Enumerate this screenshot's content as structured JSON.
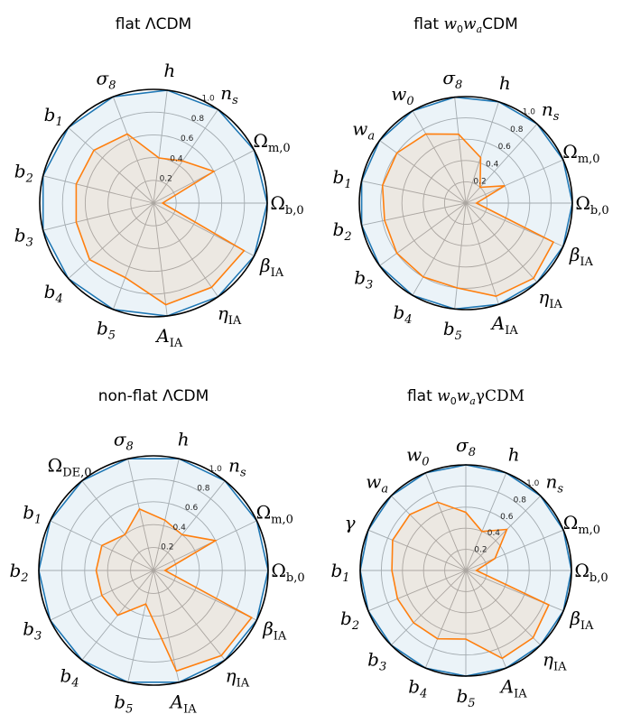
{
  "colors": {
    "outer": "#1f77b4",
    "inner": "#ff7f0e",
    "grid": "#b0b0b0"
  },
  "radial_ticks": [
    "0.2",
    "0.4",
    "0.6",
    "0.8",
    "1.0"
  ],
  "chart_data": [
    {
      "type": "radar",
      "title": "flat ΛCDM",
      "axes": [
        "n_s",
        "Ω_m,0",
        "Ω_b,0",
        "β_IA",
        "η_IA",
        "A_IA",
        "b_5",
        "b_4",
        "b_3",
        "b_2",
        "b_1",
        "σ_8",
        "h"
      ],
      "rlim": [
        0,
        1
      ],
      "series": [
        {
          "values": [
            1.0,
            1.0,
            1.0,
            1.0,
            1.0,
            1.0,
            1.0,
            1.0,
            1.0,
            1.0,
            1.0,
            1.0,
            1.0
          ]
        },
        {
          "values": [
            0.45,
            0.6,
            0.08,
            0.9,
            0.9,
            0.9,
            0.7,
            0.75,
            0.7,
            0.7,
            0.7,
            0.65,
            0.4
          ]
        }
      ]
    },
    {
      "type": "radar",
      "title": "flat w0waCDM",
      "axes": [
        "n_s",
        "Ω_m,0",
        "Ω_b,0",
        "β_IA",
        "η_IA",
        "A_IA",
        "b_5",
        "b_4",
        "b_3",
        "b_2",
        "b_1",
        "w_a",
        "w_0",
        "σ_8",
        "h"
      ],
      "rlim": [
        0,
        1
      ],
      "series": [
        {
          "values": [
            1.0,
            1.0,
            1.0,
            1.0,
            1.0,
            1.0,
            1.0,
            1.0,
            1.0,
            1.0,
            1.0,
            1.0,
            1.0,
            1.0,
            1.0
          ]
        },
        {
          "values": [
            0.2,
            0.4,
            0.1,
            0.9,
            0.95,
            0.92,
            0.8,
            0.8,
            0.8,
            0.78,
            0.8,
            0.8,
            0.75,
            0.65,
            0.45
          ]
        }
      ]
    },
    {
      "type": "radar",
      "title": "non-flat ΛCDM",
      "axes": [
        "n_s",
        "Ω_m,0",
        "Ω_b,0",
        "β_IA",
        "η_IA",
        "A_IA",
        "b_5",
        "b_4",
        "b_3",
        "b_2",
        "b_1",
        "Ω_DE,0",
        "σ_8",
        "h"
      ],
      "rlim": [
        0,
        1
      ],
      "series": [
        {
          "values": [
            1.0,
            1.0,
            1.0,
            1.0,
            1.0,
            1.0,
            1.0,
            1.0,
            1.0,
            1.0,
            1.0,
            1.0,
            1.0,
            1.0
          ]
        },
        {
          "values": [
            0.4,
            0.6,
            0.1,
            0.95,
            0.95,
            0.9,
            0.3,
            0.5,
            0.5,
            0.5,
            0.5,
            0.4,
            0.55,
            0.45
          ]
        }
      ]
    },
    {
      "type": "radar",
      "title": "flat w0waγCDM",
      "axes": [
        "n_s",
        "Ω_m,0",
        "Ω_b,0",
        "β_IA",
        "η_IA",
        "A_IA",
        "b_5",
        "b_4",
        "b_3",
        "b_2",
        "b_1",
        "γ",
        "w_a",
        "w_0",
        "σ_8",
        "h"
      ],
      "rlim": [
        0,
        1
      ],
      "series": [
        {
          "values": [
            1.0,
            1.0,
            1.0,
            1.0,
            1.0,
            1.0,
            1.0,
            1.0,
            1.0,
            1.0,
            1.0,
            1.0,
            1.0,
            1.0,
            1.0,
            1.0
          ]
        },
        {
          "values": [
            0.55,
            0.3,
            0.1,
            0.85,
            0.9,
            0.9,
            0.65,
            0.7,
            0.7,
            0.7,
            0.7,
            0.75,
            0.75,
            0.7,
            0.55,
            0.4
          ]
        }
      ]
    }
  ]
}
